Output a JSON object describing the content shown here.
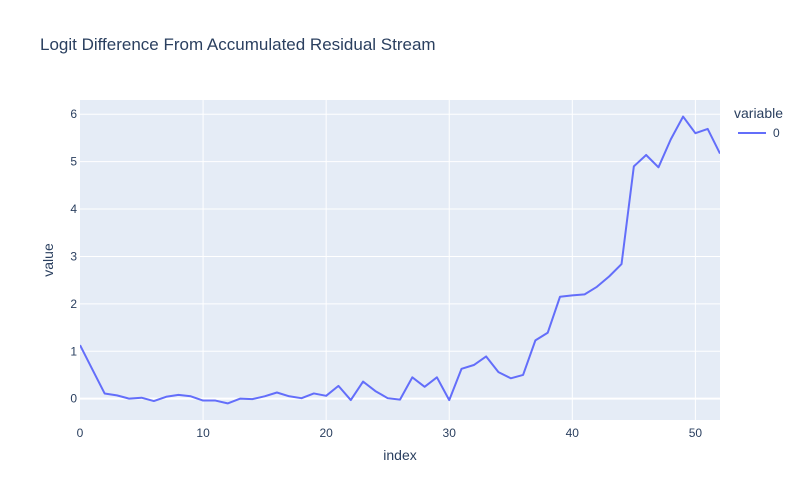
{
  "chart_data": {
    "type": "line",
    "title": "Logit Difference From Accumulated Residual Stream",
    "xlabel": "index",
    "ylabel": "value",
    "xlim": [
      0,
      52
    ],
    "ylim": [
      -0.45,
      6.3
    ],
    "xticks": [
      0,
      10,
      20,
      30,
      40,
      50
    ],
    "yticks": [
      0,
      1,
      2,
      3,
      4,
      5,
      6
    ],
    "grid": true,
    "legend": {
      "title": "variable",
      "position": "top-right"
    },
    "colors": {
      "plot_bg": "#E5ECF6",
      "grid": "#ffffff",
      "line": "#636EFA",
      "text": "#2a3f5f"
    },
    "series": [
      {
        "name": "0",
        "x": [
          0,
          1,
          2,
          3,
          4,
          5,
          6,
          7,
          8,
          9,
          10,
          11,
          12,
          13,
          14,
          15,
          16,
          17,
          18,
          19,
          20,
          21,
          22,
          23,
          24,
          25,
          26,
          27,
          28,
          29,
          30,
          31,
          32,
          33,
          34,
          35,
          36,
          37,
          38,
          39,
          40,
          41,
          42,
          43,
          44,
          45,
          46,
          47,
          48,
          49,
          50,
          51,
          52
        ],
        "values": [
          1.13,
          0.62,
          0.11,
          0.07,
          0.0,
          0.02,
          -0.05,
          0.04,
          0.08,
          0.05,
          -0.04,
          -0.04,
          -0.1,
          0.0,
          -0.01,
          0.05,
          0.13,
          0.05,
          0.01,
          0.11,
          0.06,
          0.27,
          -0.03,
          0.36,
          0.16,
          0.01,
          -0.02,
          0.45,
          0.25,
          0.45,
          -0.03,
          0.63,
          0.71,
          0.89,
          0.56,
          0.43,
          0.5,
          1.23,
          1.39,
          2.15,
          2.18,
          2.2,
          2.36,
          2.58,
          2.84,
          4.9,
          5.14,
          4.88,
          5.47,
          5.95,
          5.6,
          5.69,
          5.17
        ]
      }
    ]
  }
}
